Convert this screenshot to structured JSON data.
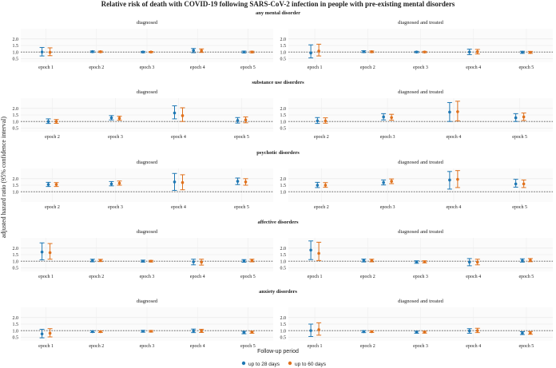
{
  "title": "Relative risk of death with COVID-19 following SARS-CoV-2 infection in people with pre-existing mental disorders",
  "ylabel": "adjusted hazard ratio (95% confidence interval)",
  "legend": {
    "title": "Follow-up period",
    "items": [
      {
        "label": "up to 28 days",
        "color": "#1f78b4"
      },
      {
        "label": "up to 60 days",
        "color": "#e0711c"
      }
    ]
  },
  "reference_line": 1.0,
  "chart_data": [
    {
      "type": "scatter",
      "title": "any mental disorder",
      "ylim": [
        0.4,
        2.6
      ],
      "yticks": [
        {
          "v": 0.5,
          "label": "0.5"
        },
        {
          "v": 1.0,
          "label": "1.0"
        },
        {
          "v": 1.5,
          "label": "1.5"
        },
        {
          "v": 2.0,
          "label": "2.0"
        }
      ],
      "panels": [
        {
          "title": "diagnosed",
          "categories": [
            "epoch 1",
            "epoch 2",
            "epoch 3",
            "epoch 4",
            "epoch 5"
          ],
          "series": [
            {
              "name": "up to 28 days",
              "values": [
                1.0,
                1.03,
                1.0,
                1.12,
                1.0
              ],
              "lower": [
                0.7,
                0.97,
                0.95,
                0.95,
                0.93
              ],
              "upper": [
                1.35,
                1.08,
                1.05,
                1.27,
                1.07
              ]
            },
            {
              "name": "up to 60 days",
              "values": [
                0.98,
                1.02,
                1.0,
                1.1,
                1.0
              ],
              "lower": [
                0.72,
                0.97,
                0.96,
                0.97,
                0.94
              ],
              "upper": [
                1.32,
                1.07,
                1.04,
                1.24,
                1.06
              ]
            }
          ]
        },
        {
          "title": "diagnosed and treated",
          "categories": [
            "epoch 1",
            "epoch 2",
            "epoch 3",
            "epoch 4",
            "epoch 5"
          ],
          "series": [
            {
              "name": "up to 28 days",
              "values": [
                0.93,
                1.03,
                1.0,
                1.0,
                0.98
              ],
              "lower": [
                0.55,
                0.96,
                0.95,
                0.8,
                0.9
              ],
              "upper": [
                1.55,
                1.1,
                1.05,
                1.22,
                1.06
              ]
            },
            {
              "name": "up to 60 days",
              "values": [
                1.08,
                1.02,
                1.0,
                1.02,
                0.97
              ],
              "lower": [
                0.7,
                0.96,
                0.95,
                0.85,
                0.9
              ],
              "upper": [
                1.6,
                1.08,
                1.05,
                1.2,
                1.05
              ]
            }
          ]
        }
      ]
    },
    {
      "type": "scatter",
      "title": "substance use disorders",
      "ylim": [
        0.4,
        2.6
      ],
      "yticks": [
        {
          "v": 0.5,
          "label": "0.5"
        },
        {
          "v": 1.0,
          "label": "1.0"
        },
        {
          "v": 1.5,
          "label": "1.5"
        },
        {
          "v": 2.0,
          "label": "2.0"
        }
      ],
      "panels": [
        {
          "title": "diagnosed",
          "categories": [
            "epoch 2",
            "epoch 3",
            "epoch 4",
            "epoch 5"
          ],
          "series": [
            {
              "name": "up to 28 days",
              "values": [
                1.0,
                1.28,
                1.65,
                1.08
              ],
              "lower": [
                0.85,
                1.12,
                1.2,
                0.88
              ],
              "upper": [
                1.2,
                1.45,
                2.2,
                1.3
              ]
            },
            {
              "name": "up to 60 days",
              "values": [
                1.0,
                1.25,
                1.45,
                1.12
              ],
              "lower": [
                0.86,
                1.1,
                1.0,
                0.9
              ],
              "upper": [
                1.15,
                1.4,
                2.05,
                1.35
              ]
            }
          ]
        },
        {
          "title": "diagnosed and treated",
          "categories": [
            "epoch 2",
            "epoch 3",
            "epoch 4",
            "epoch 5"
          ],
          "series": [
            {
              "name": "up to 28 days",
              "values": [
                1.05,
                1.35,
                1.72,
                1.28
              ],
              "lower": [
                0.85,
                1.12,
                1.0,
                1.0
              ],
              "upper": [
                1.3,
                1.6,
                2.45,
                1.6
              ]
            },
            {
              "name": "up to 60 days",
              "values": [
                1.05,
                1.3,
                1.75,
                1.35
              ],
              "lower": [
                0.87,
                1.1,
                1.05,
                1.08
              ],
              "upper": [
                1.28,
                1.55,
                2.55,
                1.65
              ]
            }
          ]
        }
      ]
    },
    {
      "type": "scatter",
      "title": "psychotic disorders",
      "ylim": [
        0.4,
        2.6
      ],
      "yticks": [
        {
          "v": 1.0,
          "label": "1.0"
        },
        {
          "v": 1.5,
          "label": "1.5"
        },
        {
          "v": 2.0,
          "label": "2.0"
        }
      ],
      "panels": [
        {
          "title": "diagnosed",
          "categories": [
            "epoch 2",
            "epoch 3",
            "epoch 4",
            "epoch 5"
          ],
          "series": [
            {
              "name": "up to 28 days",
              "values": [
                1.55,
                1.6,
                1.75,
                1.8
              ],
              "lower": [
                1.4,
                1.45,
                1.1,
                1.55
              ],
              "upper": [
                1.72,
                1.78,
                2.4,
                2.05
              ]
            },
            {
              "name": "up to 60 days",
              "values": [
                1.55,
                1.65,
                1.7,
                1.75
              ],
              "lower": [
                1.4,
                1.5,
                1.15,
                1.5
              ],
              "upper": [
                1.7,
                1.82,
                2.3,
                2.0
              ]
            }
          ]
        },
        {
          "title": "diagnosed and treated",
          "categories": [
            "epoch 2",
            "epoch 3",
            "epoch 4",
            "epoch 5"
          ],
          "series": [
            {
              "name": "up to 28 days",
              "values": [
                1.5,
                1.7,
                1.9,
                1.6
              ],
              "lower": [
                1.32,
                1.52,
                1.2,
                1.35
              ],
              "upper": [
                1.72,
                1.9,
                2.55,
                1.95
              ]
            },
            {
              "name": "up to 60 days",
              "values": [
                1.5,
                1.8,
                1.95,
                1.6
              ],
              "lower": [
                1.34,
                1.62,
                1.32,
                1.32
              ],
              "upper": [
                1.7,
                1.98,
                2.62,
                1.9
              ]
            }
          ]
        }
      ]
    },
    {
      "type": "scatter",
      "title": "affective disorders",
      "ylim": [
        0.4,
        2.6
      ],
      "yticks": [
        {
          "v": 0.5,
          "label": "0.5"
        },
        {
          "v": 1.0,
          "label": "1.0"
        },
        {
          "v": 1.5,
          "label": "1.5"
        },
        {
          "v": 2.0,
          "label": "2.0"
        }
      ],
      "panels": [
        {
          "title": "diagnosed",
          "categories": [
            "epoch 1",
            "epoch 2",
            "epoch 3",
            "epoch 4",
            "epoch 5"
          ],
          "series": [
            {
              "name": "up to 28 days",
              "values": [
                1.7,
                1.05,
                1.0,
                0.95,
                1.02
              ],
              "lower": [
                1.1,
                0.95,
                0.93,
                0.72,
                0.92
              ],
              "upper": [
                2.4,
                1.15,
                1.08,
                1.15,
                1.12
              ]
            },
            {
              "name": "up to 60 days",
              "values": [
                1.65,
                1.05,
                1.0,
                0.93,
                1.05
              ],
              "lower": [
                1.15,
                0.97,
                0.94,
                0.7,
                0.95
              ],
              "upper": [
                2.35,
                1.14,
                1.06,
                1.15,
                1.15
              ]
            }
          ]
        },
        {
          "title": "diagnosed and treated",
          "categories": [
            "epoch 1",
            "epoch 2",
            "epoch 3",
            "epoch 4",
            "epoch 5"
          ],
          "series": [
            {
              "name": "up to 28 days",
              "values": [
                1.85,
                1.05,
                0.93,
                0.93,
                1.05
              ],
              "lower": [
                1.12,
                0.94,
                0.84,
                0.65,
                0.93
              ],
              "upper": [
                2.55,
                1.16,
                1.03,
                1.2,
                1.18
              ]
            },
            {
              "name": "up to 60 days",
              "values": [
                1.6,
                1.05,
                0.95,
                0.93,
                1.08
              ],
              "lower": [
                1.05,
                0.95,
                0.87,
                0.72,
                0.96
              ],
              "upper": [
                2.45,
                1.15,
                1.03,
                1.15,
                1.2
              ]
            }
          ]
        }
      ]
    },
    {
      "type": "scatter",
      "title": "anxiety disorders",
      "ylim": [
        0.4,
        2.6
      ],
      "yticks": [
        {
          "v": 0.5,
          "label": "0.5"
        },
        {
          "v": 1.0,
          "label": "1.0"
        },
        {
          "v": 1.5,
          "label": "1.5"
        },
        {
          "v": 2.0,
          "label": "2.0"
        }
      ],
      "panels": [
        {
          "title": "diagnosed",
          "categories": [
            "epoch 1",
            "epoch 2",
            "epoch 3",
            "epoch 4",
            "epoch 5"
          ],
          "series": [
            {
              "name": "up to 28 days",
              "values": [
                0.75,
                0.92,
                0.95,
                0.98,
                0.85
              ],
              "lower": [
                0.45,
                0.86,
                0.88,
                0.85,
                0.76
              ],
              "upper": [
                1.1,
                0.99,
                1.02,
                1.12,
                0.95
              ]
            },
            {
              "name": "up to 60 days",
              "values": [
                0.8,
                0.92,
                0.95,
                0.98,
                0.88
              ],
              "lower": [
                0.52,
                0.86,
                0.89,
                0.86,
                0.8
              ],
              "upper": [
                1.15,
                0.98,
                1.01,
                1.1,
                0.96
              ]
            }
          ]
        },
        {
          "title": "diagnosed and treated",
          "categories": [
            "epoch 1",
            "epoch 2",
            "epoch 3",
            "epoch 4",
            "epoch 5"
          ],
          "series": [
            {
              "name": "up to 28 days",
              "values": [
                1.0,
                0.92,
                0.88,
                0.98,
                0.8
              ],
              "lower": [
                0.55,
                0.85,
                0.8,
                0.8,
                0.7
              ],
              "upper": [
                1.5,
                1.0,
                0.96,
                1.15,
                0.92
              ]
            },
            {
              "name": "up to 60 days",
              "values": [
                1.08,
                0.92,
                0.88,
                1.0,
                0.82
              ],
              "lower": [
                0.65,
                0.86,
                0.81,
                0.85,
                0.72
              ],
              "upper": [
                1.6,
                0.99,
                0.96,
                1.18,
                0.93
              ]
            }
          ]
        }
      ]
    }
  ]
}
